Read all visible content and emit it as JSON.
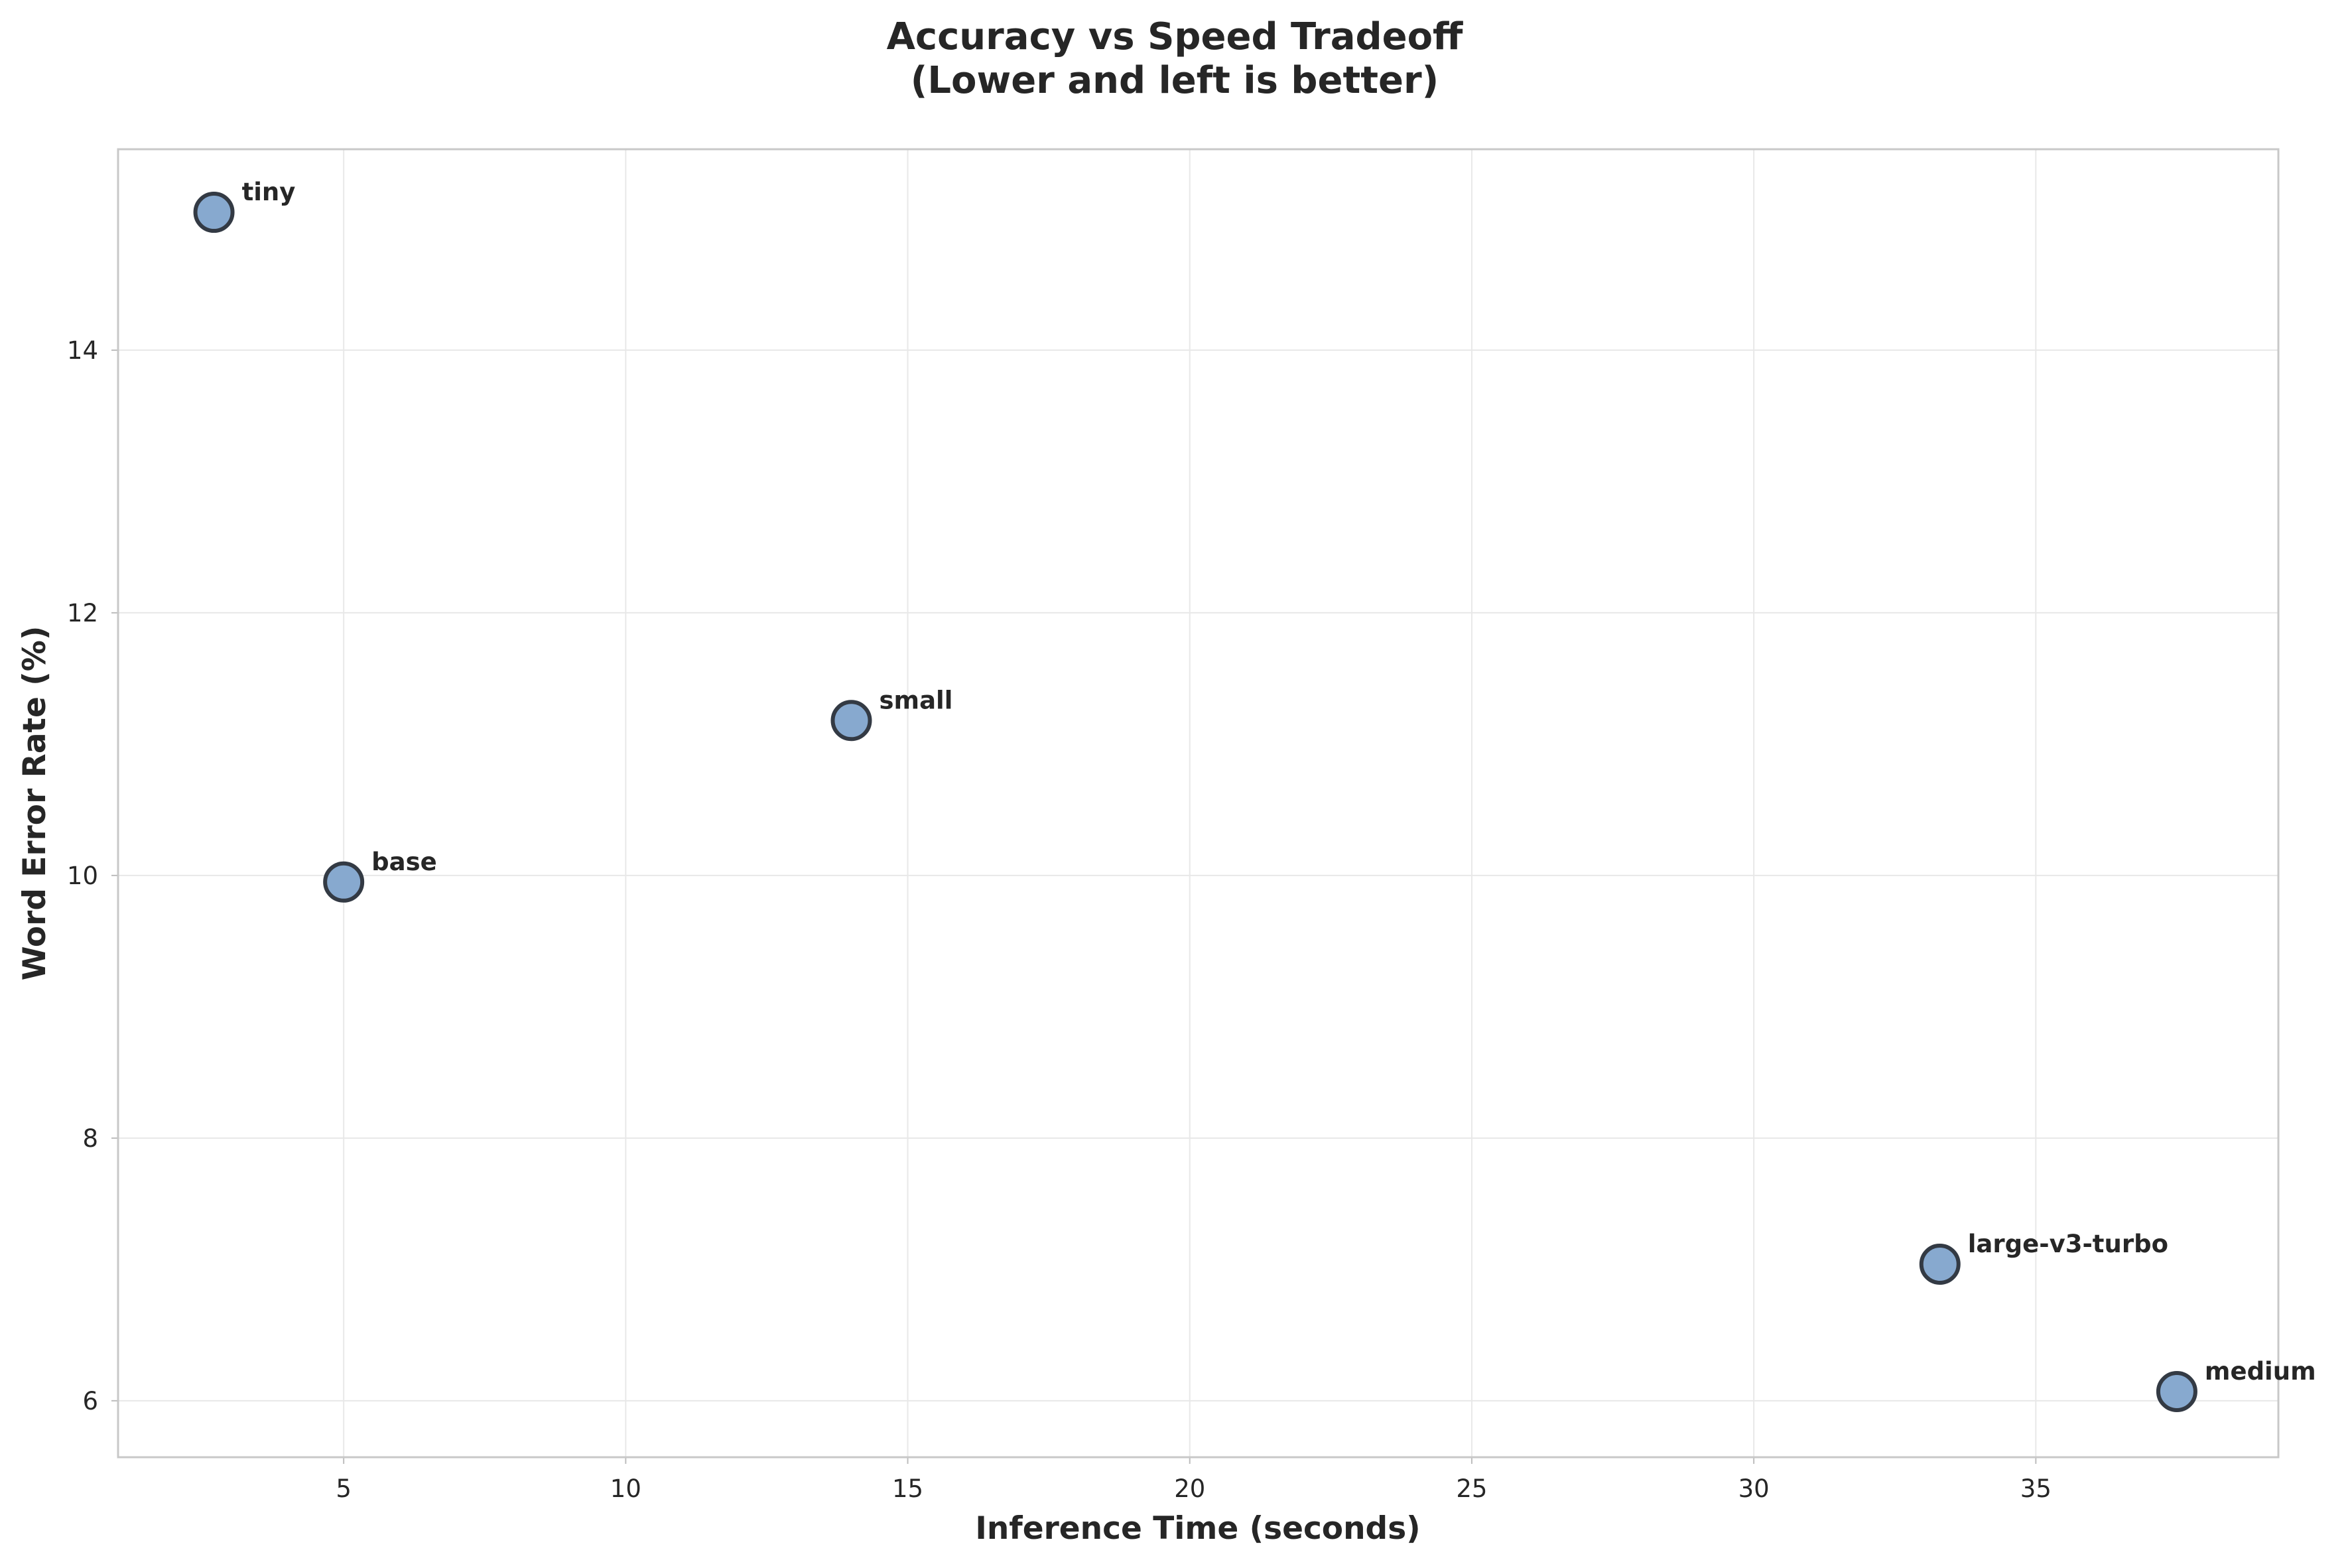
{
  "chart_data": {
    "type": "scatter",
    "title_line1": "Accuracy vs Speed Tradeoff",
    "title_line2": "(Lower and left is better)",
    "xlabel": "Inference Time (seconds)",
    "ylabel": "Word Error Rate (%)",
    "xlim": [
      1,
      39.3
    ],
    "ylim": [
      5.57,
      15.53
    ],
    "xticks": [
      5,
      10,
      15,
      20,
      25,
      30,
      35
    ],
    "yticks": [
      6,
      8,
      10,
      12,
      14
    ],
    "grid": true,
    "marker_color": "#87a9cf",
    "marker_edge_color": "#333a44",
    "points": [
      {
        "label": "tiny",
        "x": 2.7,
        "y": 15.05
      },
      {
        "label": "base",
        "x": 5.0,
        "y": 9.95
      },
      {
        "label": "small",
        "x": 14.0,
        "y": 11.18
      },
      {
        "label": "large-v3-turbo",
        "x": 33.3,
        "y": 7.04
      },
      {
        "label": "medium",
        "x": 37.5,
        "y": 6.07
      }
    ]
  }
}
